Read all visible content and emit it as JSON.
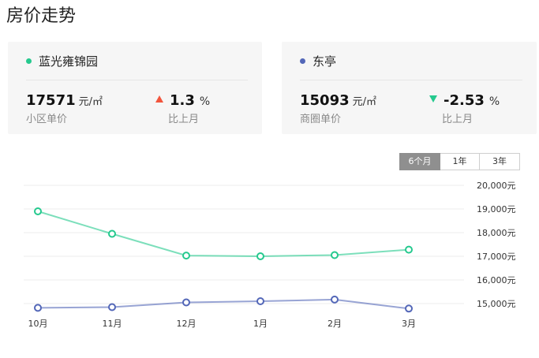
{
  "page_title": "房价走势",
  "cards": [
    {
      "name": "蓝光雍锦园",
      "price": "17571",
      "unit": "元/㎡",
      "price_label": "小区单价",
      "change": "1.3",
      "change_unit": "%",
      "change_direction": "up",
      "change_label": "比上月",
      "dot_color": "#25c98e"
    },
    {
      "name": "东亭",
      "price": "15093",
      "unit": "元/㎡",
      "price_label": "商圈单价",
      "change": "-2.53",
      "change_unit": "%",
      "change_direction": "down",
      "change_label": "比上月",
      "dot_color": "#5367b8"
    }
  ],
  "tabs": [
    {
      "label": "6个月",
      "active": true
    },
    {
      "label": "1年",
      "active": false
    },
    {
      "label": "3年",
      "active": false
    }
  ],
  "chart_data": {
    "type": "line",
    "categories": [
      "10月",
      "11月",
      "12月",
      "1月",
      "2月",
      "3月"
    ],
    "y_ticks": [
      "20,000元",
      "19,000元",
      "18,000元",
      "17,000元",
      "16,000元",
      "15,000元"
    ],
    "ylim": [
      15000,
      20000
    ],
    "grid": true,
    "series": [
      {
        "name": "蓝光雍锦园",
        "color": "#25c98e",
        "values": [
          18900,
          17950,
          17030,
          17000,
          17050,
          17280
        ]
      },
      {
        "name": "东亭",
        "color": "#5367b8",
        "values": [
          14820,
          14850,
          15050,
          15100,
          15170,
          14790
        ]
      }
    ]
  }
}
